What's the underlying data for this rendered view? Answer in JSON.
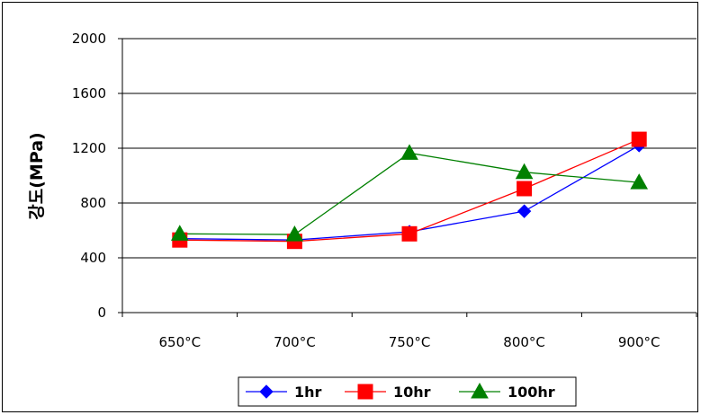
{
  "chart_data": {
    "type": "line",
    "title": "",
    "xlabel": "",
    "ylabel": "강도(MPa)",
    "categories": [
      "650°C",
      "700°C",
      "750°C",
      "800°C",
      "900°C"
    ],
    "ylim": [
      0,
      2000
    ],
    "yticks": [
      0,
      400,
      800,
      1200,
      1600,
      2000
    ],
    "grid": true,
    "legend": "bottom",
    "series": [
      {
        "name": "1hr",
        "values": [
          540,
          530,
          590,
          740,
          1220
        ],
        "color": "#0000ff",
        "marker": "diamond"
      },
      {
        "name": "10hr",
        "values": [
          530,
          520,
          575,
          905,
          1265
        ],
        "color": "#ff0000",
        "marker": "square"
      },
      {
        "name": "100hr",
        "values": [
          575,
          570,
          1165,
          1025,
          950
        ],
        "color": "#008000",
        "marker": "triangle"
      }
    ]
  }
}
